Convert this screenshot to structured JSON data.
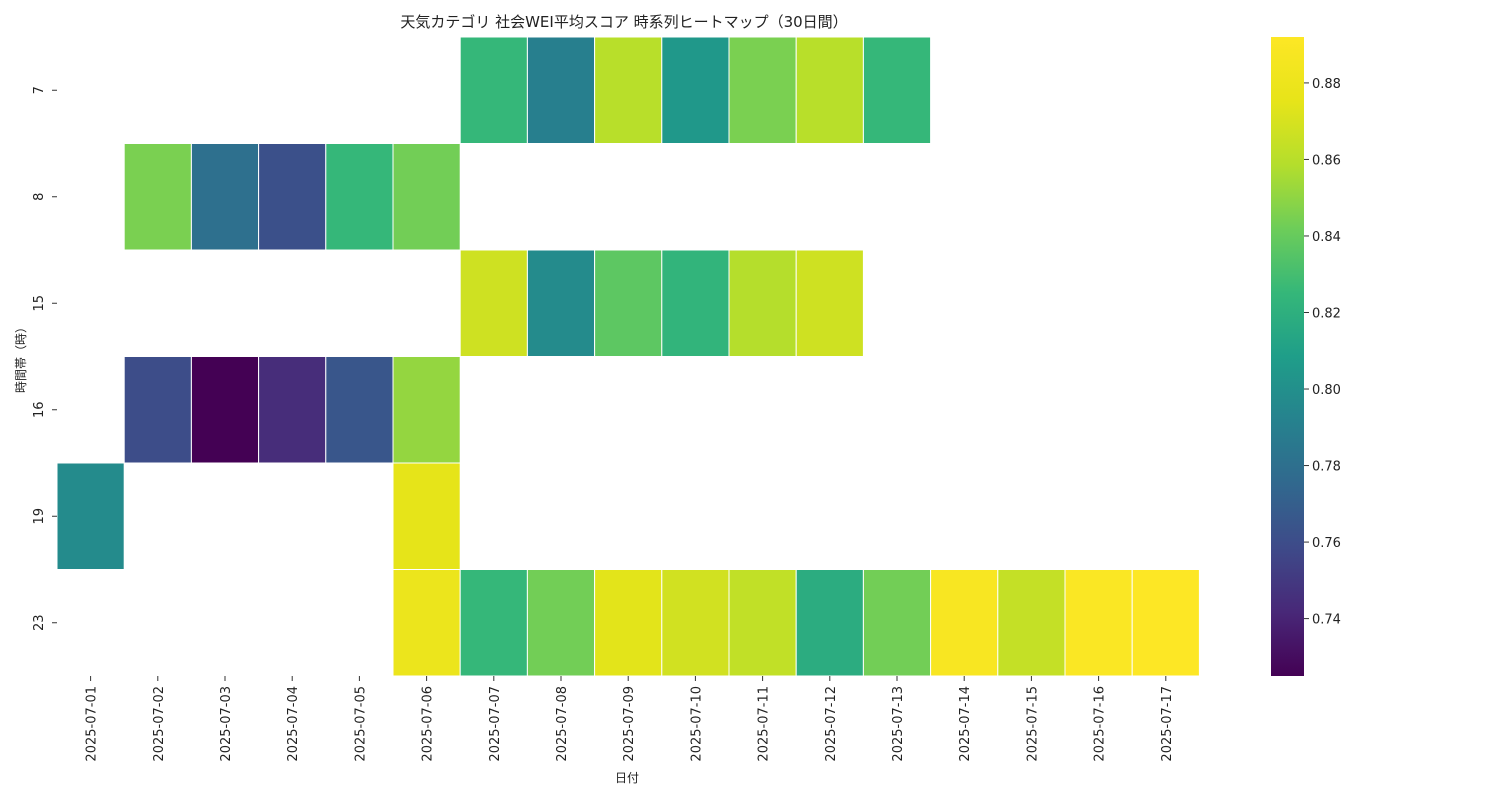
{
  "chart_data": {
    "type": "heatmap",
    "title": "天気カテゴリ 社会WEI平均スコア 時系列ヒートマップ（30日間）",
    "xlabel": "日付",
    "ylabel": "時間帯（時）",
    "x_categories": [
      "2025-07-01",
      "2025-07-02",
      "2025-07-03",
      "2025-07-04",
      "2025-07-05",
      "2025-07-06",
      "2025-07-07",
      "2025-07-08",
      "2025-07-09",
      "2025-07-10",
      "2025-07-11",
      "2025-07-12",
      "2025-07-13",
      "2025-07-14",
      "2025-07-15",
      "2025-07-16",
      "2025-07-17"
    ],
    "y_categories": [
      "7",
      "8",
      "15",
      "16",
      "19",
      "23"
    ],
    "values": [
      [
        null,
        null,
        null,
        null,
        null,
        null,
        0.825,
        0.79,
        0.86,
        0.805,
        0.845,
        0.86,
        0.825,
        null,
        null,
        null,
        null
      ],
      [
        null,
        0.845,
        0.78,
        0.762,
        0.825,
        0.843,
        null,
        null,
        null,
        null,
        null,
        null,
        null,
        null,
        null,
        null,
        null
      ],
      [
        null,
        null,
        null,
        null,
        null,
        null,
        0.867,
        0.797,
        0.837,
        0.823,
        0.859,
        0.867,
        null,
        null,
        null,
        null,
        null
      ],
      [
        null,
        0.76,
        0.725,
        0.744,
        0.765,
        0.851,
        null,
        null,
        null,
        null,
        null,
        null,
        null,
        null,
        null,
        null,
        null
      ],
      [
        0.797,
        null,
        null,
        null,
        null,
        0.875,
        null,
        null,
        null,
        null,
        null,
        null,
        null,
        null,
        null,
        null,
        null
      ],
      [
        null,
        null,
        null,
        null,
        null,
        0.879,
        0.825,
        0.843,
        0.874,
        0.868,
        0.863,
        0.818,
        0.843,
        0.888,
        0.864,
        0.89,
        0.892
      ]
    ],
    "colorscale": "viridis",
    "vmin": 0.725,
    "vmax": 0.892,
    "colorbar_ticks": [
      "0.74",
      "0.76",
      "0.78",
      "0.80",
      "0.82",
      "0.84",
      "0.86",
      "0.88"
    ],
    "grid": false,
    "colorbar_position": "right"
  }
}
